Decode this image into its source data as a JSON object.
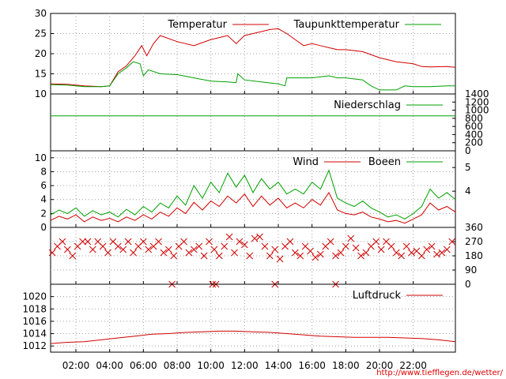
{
  "chart_data": {
    "type": "line",
    "x_tick_labels": [
      "02:00",
      "04:00",
      "06:00",
      "08:00",
      "10:00",
      "12:00",
      "14:00",
      "16:00",
      "18:00",
      "20:00",
      "22:00"
    ],
    "x_ticks_hours": [
      2,
      4,
      6,
      8,
      10,
      12,
      14,
      16,
      18,
      20,
      22
    ],
    "x_range_hours": [
      0.5,
      24.5
    ],
    "footer_url": "http://www.tiefflegen.de/wetter/",
    "panels": [
      {
        "id": "temperature",
        "ylim": [
          10,
          30
        ],
        "left_ticks": [
          10,
          15,
          20,
          25,
          30
        ],
        "grid": true,
        "series": [
          {
            "name": "Temperatur",
            "color": "#d00000",
            "x": [
              0.5,
              1.5,
              2.5,
              3.5,
              4.0,
              4.5,
              5.0,
              5.5,
              5.9,
              6.2,
              6.6,
              7.0,
              8.0,
              9.0,
              10.0,
              10.5,
              11.0,
              11.5,
              12.0,
              12.5,
              13.0,
              13.5,
              14.0,
              14.5,
              15.0,
              15.5,
              16.0,
              16.5,
              17.0,
              17.5,
              18.0,
              19.0,
              20.0,
              21.0,
              22.0,
              22.5,
              23.0,
              24.0,
              24.5
            ],
            "y": [
              12.5,
              12.4,
              12.0,
              11.8,
              12.0,
              15.5,
              17.0,
              19.5,
              22.0,
              19.5,
              22.5,
              24.5,
              23.0,
              22.0,
              23.5,
              24.0,
              24.5,
              22.5,
              24.5,
              25.0,
              25.5,
              26.0,
              26.2,
              25.0,
              23.5,
              22.0,
              22.5,
              22.0,
              21.5,
              21.0,
              21.0,
              20.5,
              19.0,
              18.0,
              17.5,
              16.8,
              16.7,
              16.8,
              16.6
            ]
          },
          {
            "name": "Taupunkttemperatur",
            "color": "#00a000",
            "x": [
              0.5,
              1.5,
              2.5,
              3.5,
              4.0,
              4.5,
              5.0,
              5.4,
              5.8,
              6.0,
              6.3,
              7.0,
              8.0,
              9.0,
              10.0,
              11.0,
              11.5,
              11.6,
              12.0,
              13.0,
              14.0,
              14.4,
              14.5,
              15.0,
              16.0,
              17.0,
              17.5,
              18.0,
              19.0,
              19.5,
              20.0,
              20.5,
              21.0,
              21.5,
              22.0,
              23.0,
              24.0,
              24.5
            ],
            "y": [
              12.3,
              12.2,
              11.8,
              11.8,
              12.0,
              15.0,
              16.5,
              18.0,
              17.5,
              14.5,
              16.0,
              15.0,
              14.8,
              14.0,
              13.2,
              13.0,
              12.8,
              15.0,
              13.5,
              13.0,
              12.5,
              12.0,
              14.0,
              14.0,
              14.0,
              14.5,
              14.0,
              14.0,
              13.5,
              12.0,
              11.0,
              11.0,
              11.0,
              12.0,
              11.8,
              11.8,
              12.0,
              12.0
            ]
          }
        ]
      },
      {
        "id": "precipitation",
        "ylim": [
          0,
          1400
        ],
        "right_ticks": [
          "0",
          "200",
          "400",
          "600",
          "800",
          "1000",
          "1200",
          "1400"
        ],
        "right_tick_values": [
          0,
          200,
          400,
          600,
          800,
          1000,
          1200,
          1400
        ],
        "grid": false,
        "series": [
          {
            "name": "Niederschlag",
            "color": "#00a000",
            "x": [
              0.5,
              24.5
            ],
            "y": [
              860,
              860
            ]
          }
        ]
      },
      {
        "id": "wind",
        "ylim": [
          0,
          11
        ],
        "left_ticks": [
          0,
          2,
          4,
          6,
          8,
          10
        ],
        "right_ticks": [
          "4",
          "5"
        ],
        "right_tick_values": [
          5.2,
          8.6
        ],
        "grid": true,
        "series": [
          {
            "name": "Wind",
            "color": "#d00000",
            "x": [
              0.5,
              1.0,
              1.5,
              2.0,
              2.5,
              3.0,
              3.5,
              4.0,
              4.5,
              5.0,
              5.5,
              6.0,
              6.5,
              7.0,
              7.5,
              8.0,
              8.5,
              9.0,
              9.5,
              10.0,
              10.5,
              11.0,
              11.5,
              12.0,
              12.5,
              13.0,
              13.5,
              14.0,
              14.5,
              15.0,
              15.5,
              16.0,
              16.5,
              17.0,
              17.5,
              18.0,
              18.5,
              19.0,
              19.5,
              20.0,
              20.5,
              21.0,
              21.5,
              22.0,
              22.5,
              23.0,
              23.5,
              24.0,
              24.5
            ],
            "y": [
              1.0,
              1.6,
              1.2,
              1.8,
              0.8,
              1.5,
              1.0,
              1.3,
              0.8,
              1.5,
              1.0,
              1.8,
              1.2,
              2.2,
              1.6,
              2.8,
              2.0,
              3.6,
              2.5,
              3.8,
              3.0,
              4.5,
              3.5,
              4.8,
              3.0,
              4.5,
              3.2,
              4.2,
              2.8,
              3.5,
              2.8,
              4.0,
              3.2,
              5.0,
              2.5,
              2.0,
              1.8,
              2.2,
              1.5,
              1.2,
              0.8,
              1.0,
              0.6,
              1.2,
              1.8,
              3.5,
              2.5,
              3.0,
              2.2
            ]
          },
          {
            "name": "Boeen",
            "color": "#00a000",
            "x": [
              0.5,
              1.0,
              1.5,
              2.0,
              2.5,
              3.0,
              3.5,
              4.0,
              4.5,
              5.0,
              5.5,
              6.0,
              6.5,
              7.0,
              7.5,
              8.0,
              8.5,
              9.0,
              9.5,
              10.0,
              10.5,
              11.0,
              11.5,
              12.0,
              12.5,
              13.0,
              13.5,
              14.0,
              14.5,
              15.0,
              15.5,
              16.0,
              16.5,
              17.0,
              17.5,
              18.0,
              18.5,
              19.0,
              19.5,
              20.0,
              20.5,
              21.0,
              21.5,
              22.0,
              22.5,
              23.0,
              23.5,
              24.0,
              24.5
            ],
            "y": [
              1.8,
              2.5,
              2.0,
              2.8,
              1.6,
              2.4,
              1.8,
              2.2,
              1.5,
              2.6,
              1.8,
              3.0,
              2.2,
              3.5,
              2.8,
              4.5,
              3.2,
              6.0,
              4.2,
              6.5,
              5.0,
              7.8,
              5.8,
              7.5,
              5.0,
              7.0,
              5.5,
              6.5,
              4.8,
              5.5,
              4.8,
              6.5,
              5.5,
              8.2,
              4.2,
              3.5,
              3.0,
              3.8,
              2.8,
              2.2,
              1.5,
              1.8,
              1.2,
              2.0,
              3.0,
              5.5,
              4.2,
              5.0,
              4.0
            ]
          }
        ]
      },
      {
        "id": "wind-direction",
        "ylim": [
          0,
          360
        ],
        "right_ticks": [
          "0",
          "90",
          "180",
          "270",
          "360"
        ],
        "right_tick_values": [
          0,
          90,
          180,
          270,
          360
        ],
        "grid": true,
        "series": [
          {
            "name": "",
            "color": "#d00000",
            "marker": "x",
            "x": [
              0.6,
              0.9,
              1.2,
              1.5,
              1.8,
              2.1,
              2.4,
              2.7,
              3.0,
              3.3,
              3.6,
              3.9,
              4.2,
              4.5,
              4.8,
              5.1,
              5.4,
              5.7,
              6.0,
              6.3,
              6.6,
              6.9,
              7.2,
              7.5,
              7.8,
              8.1,
              8.4,
              8.7,
              9.0,
              9.3,
              9.6,
              9.9,
              10.2,
              10.5,
              10.8,
              11.1,
              11.4,
              11.7,
              12.0,
              12.3,
              12.6,
              12.9,
              13.2,
              13.5,
              13.8,
              14.1,
              14.4,
              14.7,
              15.0,
              15.3,
              15.6,
              15.9,
              16.2,
              16.5,
              16.8,
              17.1,
              17.4,
              17.7,
              18.0,
              18.3,
              18.6,
              18.9,
              19.2,
              19.5,
              19.8,
              20.1,
              20.4,
              20.7,
              21.0,
              21.3,
              21.6,
              21.9,
              22.2,
              22.5,
              22.8,
              23.1,
              23.4,
              23.7,
              24.0,
              24.3,
              7.7,
              10.1,
              10.3,
              13.8,
              17.4
            ],
            "y": [
              200,
              240,
              270,
              220,
              180,
              240,
              270,
              270,
              220,
              270,
              240,
              200,
              270,
              240,
              220,
              270,
              200,
              240,
              270,
              220,
              240,
              270,
              200,
              220,
              180,
              240,
              270,
              200,
              220,
              240,
              180,
              270,
              220,
              180,
              240,
              300,
              200,
              270,
              250,
              180,
              290,
              300,
              240,
              180,
              220,
              160,
              240,
              270,
              200,
              180,
              240,
              210,
              170,
              190,
              240,
              270,
              180,
              200,
              240,
              290,
              230,
              180,
              200,
              240,
              270,
              220,
              270,
              240,
              200,
              180,
              240,
              200,
              210,
              180,
              220,
              240,
              190,
              200,
              220,
              270,
              0,
              0,
              0,
              0,
              0
            ]
          }
        ]
      },
      {
        "id": "pressure",
        "ylim": [
          1011,
          1022
        ],
        "left_ticks": [
          1012,
          1014,
          1016,
          1018,
          1020
        ],
        "grid": true,
        "series": [
          {
            "name": "Luftdruck",
            "color": "#d00000",
            "x": [
              0.5,
              1.5,
              2.5,
              3.5,
              4.5,
              5.5,
              6.5,
              7.5,
              8.5,
              9.5,
              10.5,
              11.5,
              12.5,
              13.5,
              14.5,
              15.5,
              16.5,
              17.5,
              18.5,
              19.5,
              20.5,
              21.5,
              22.5,
              23.5,
              24.5
            ],
            "y": [
              1012.4,
              1012.6,
              1012.7,
              1013.0,
              1013.3,
              1013.6,
              1013.9,
              1014.0,
              1014.2,
              1014.3,
              1014.4,
              1014.4,
              1014.3,
              1014.2,
              1014.0,
              1013.8,
              1013.6,
              1013.5,
              1013.4,
              1013.4,
              1013.4,
              1013.3,
              1013.2,
              1013.0,
              1012.7
            ]
          }
        ]
      }
    ]
  }
}
